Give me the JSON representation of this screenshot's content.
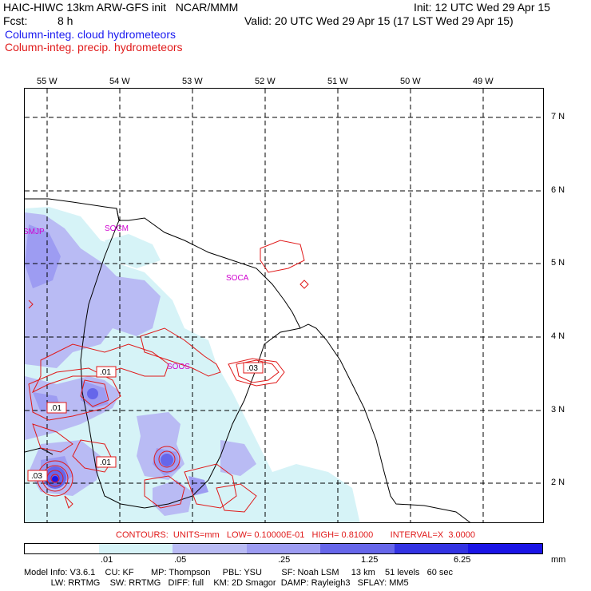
{
  "header": {
    "title_left": "HAIC-HIWC 13km ARW-GFS init   NCAR/MMM",
    "init": "Init: 12 UTC Wed 29 Apr 15",
    "fcst_label": "Fcst:",
    "fcst_value": "8 h",
    "valid": "Valid: 20 UTC Wed 29 Apr 15 (17 LST Wed 29 Apr 15)",
    "field_cloud": "Column-integ. cloud hydrometeors",
    "field_precip": "Column-integ. precip. hydrometeors"
  },
  "colors": {
    "cloud_title": "#1a1af0",
    "precip_title": "#e01a1a",
    "station_label": "#d000d0",
    "contour": "#e01a1a",
    "coast": "#000000",
    "shade_levels": [
      "#ffffff",
      "#d6f3f7",
      "#b9bbf4",
      "#9d9cf2",
      "#6666ea",
      "#3333e3",
      "#1a14e6"
    ]
  },
  "map": {
    "lon_labels": [
      "55 W",
      "54 W",
      "53 W",
      "52 W",
      "51 W",
      "50 W",
      "49 W"
    ],
    "lat_labels": [
      "7 N",
      "6 N",
      "5 N",
      "4 N",
      "3 N",
      "2 N"
    ],
    "stations": [
      "SMJP",
      "SOCM",
      "SOCA",
      "SOOS"
    ],
    "contour_labels": [
      ".01",
      ".03",
      ".01",
      ".01",
      ".03",
      ".01",
      ".03"
    ]
  },
  "legend": {
    "contours_line": "CONTOURS:  UNITS=mm   LOW= 0.10000E-01   HIGH= 0.81000       INTERVAL=X  3.0000",
    "ticks": [
      ".01",
      ".05",
      ".25",
      "1.25",
      "6.25"
    ],
    "unit": "mm"
  },
  "footer": {
    "line1": "Model Info: V3.6.1    CU: KF       MP: Thompson     PBL: YSU        SF: Noah LSM     13 km    51 levels   60 sec",
    "line2": "           LW: RRTMG    SW: RRTMG   DIFF: full    KM: 2D Smagor  DAMP: Rayleigh3   SFLAY: MM5"
  }
}
